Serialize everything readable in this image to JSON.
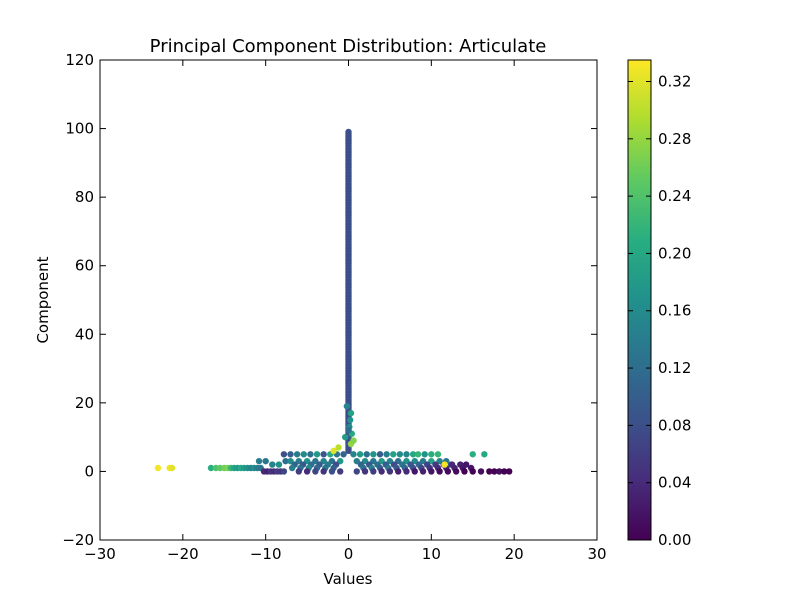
{
  "chart_data": {
    "type": "scatter",
    "title": "Principal Component Distribution: Articulate",
    "xlabel": "Values",
    "ylabel": "Component",
    "xlim": [
      -30,
      30
    ],
    "ylim": [
      -20,
      120
    ],
    "xticks": [
      -30,
      -20,
      -10,
      0,
      10,
      20,
      30
    ],
    "yticks": [
      -20,
      0,
      20,
      40,
      60,
      80,
      100,
      120
    ],
    "xtick_labels": [
      "−30",
      "−20",
      "−10",
      "0",
      "10",
      "20",
      "30"
    ],
    "ytick_labels": [
      "−20",
      "0",
      "20",
      "40",
      "60",
      "80",
      "100",
      "120"
    ],
    "grid": false,
    "colormap": "viridis",
    "colorbar": {
      "range": [
        0.0,
        0.335
      ],
      "ticks": [
        0.0,
        0.04,
        0.08,
        0.12,
        0.16,
        0.2,
        0.24,
        0.28,
        0.32
      ],
      "tick_labels": [
        "0.00",
        "0.04",
        "0.08",
        "0.12",
        "0.16",
        "0.20",
        "0.24",
        "0.28",
        "0.32"
      ]
    },
    "points": [
      [
        -23.0,
        1,
        0.33
      ],
      [
        -21.6,
        1,
        0.33
      ],
      [
        -21.3,
        1,
        0.32
      ],
      [
        -16.6,
        1,
        0.21
      ],
      [
        -16.0,
        1,
        0.24
      ],
      [
        -15.5,
        1,
        0.25
      ],
      [
        -15.0,
        1,
        0.26
      ],
      [
        -14.6,
        1,
        0.27
      ],
      [
        -14.2,
        1,
        0.22
      ],
      [
        -13.8,
        1,
        0.19
      ],
      [
        -13.4,
        1,
        0.18
      ],
      [
        -13.0,
        1,
        0.2
      ],
      [
        -12.6,
        1,
        0.18
      ],
      [
        -12.2,
        1,
        0.17
      ],
      [
        -11.8,
        1,
        0.15
      ],
      [
        -11.4,
        1,
        0.16
      ],
      [
        -11.0,
        1,
        0.14
      ],
      [
        -10.6,
        1,
        0.13
      ],
      [
        -10.2,
        0,
        0.04
      ],
      [
        -9.8,
        0,
        0.03
      ],
      [
        -9.4,
        0,
        0.05
      ],
      [
        -9.0,
        0,
        0.04
      ],
      [
        -8.6,
        0,
        0.06
      ],
      [
        -8.2,
        0,
        0.05
      ],
      [
        -7.8,
        0,
        0.07
      ],
      [
        -10.8,
        3,
        0.14
      ],
      [
        -10.0,
        3,
        0.13
      ],
      [
        -9.2,
        2,
        0.15
      ],
      [
        -8.4,
        2,
        0.17
      ],
      [
        -7.6,
        3,
        0.12
      ],
      [
        -7.8,
        5,
        0.08
      ],
      [
        -7.0,
        5,
        0.1
      ],
      [
        -6.2,
        5,
        0.14
      ],
      [
        -5.4,
        5,
        0.16
      ],
      [
        -4.6,
        5,
        0.12
      ],
      [
        -3.8,
        5,
        0.18
      ],
      [
        -3.0,
        5,
        0.09
      ],
      [
        -2.2,
        5,
        0.2
      ],
      [
        -1.4,
        5,
        0.13
      ],
      [
        -0.6,
        5,
        0.11
      ],
      [
        0.6,
        5,
        0.15
      ],
      [
        1.4,
        5,
        0.18
      ],
      [
        2.2,
        5,
        0.12
      ],
      [
        3.0,
        5,
        0.17
      ],
      [
        3.8,
        5,
        0.1
      ],
      [
        4.6,
        5,
        0.14
      ],
      [
        5.4,
        5,
        0.19
      ],
      [
        6.2,
        5,
        0.16
      ],
      [
        7.0,
        5,
        0.15
      ],
      [
        7.8,
        5,
        0.2
      ],
      [
        8.4,
        5,
        0.22
      ],
      [
        9.2,
        5,
        0.17
      ],
      [
        10.0,
        5,
        0.21
      ],
      [
        10.8,
        5,
        0.22
      ],
      [
        15.0,
        5,
        0.21
      ],
      [
        16.4,
        5,
        0.2
      ],
      [
        -7.0,
        3,
        0.16
      ],
      [
        -6.0,
        3,
        0.14
      ],
      [
        -5.0,
        3,
        0.17
      ],
      [
        -4.0,
        3,
        0.13
      ],
      [
        -3.0,
        3,
        0.15
      ],
      [
        -2.0,
        3,
        0.12
      ],
      [
        -1.0,
        3,
        0.18
      ],
      [
        1.0,
        3,
        0.14
      ],
      [
        2.0,
        3,
        0.16
      ],
      [
        3.0,
        3,
        0.13
      ],
      [
        4.0,
        3,
        0.18
      ],
      [
        5.0,
        3,
        0.15
      ],
      [
        6.0,
        3,
        0.12
      ],
      [
        7.0,
        3,
        0.17
      ],
      [
        8.0,
        3,
        0.16
      ],
      [
        9.0,
        3,
        0.14
      ],
      [
        10.0,
        3,
        0.19
      ],
      [
        11.0,
        3,
        0.15
      ],
      [
        11.8,
        3,
        0.13
      ],
      [
        12.4,
        2,
        0.1
      ],
      [
        -6.5,
        2,
        0.11
      ],
      [
        -5.5,
        2,
        0.09
      ],
      [
        -4.5,
        2,
        0.12
      ],
      [
        -3.5,
        2,
        0.1
      ],
      [
        -2.5,
        2,
        0.14
      ],
      [
        -1.5,
        2,
        0.08
      ],
      [
        1.5,
        2,
        0.11
      ],
      [
        2.5,
        2,
        0.09
      ],
      [
        3.5,
        2,
        0.12
      ],
      [
        4.5,
        2,
        0.1
      ],
      [
        5.5,
        2,
        0.08
      ],
      [
        6.5,
        2,
        0.13
      ],
      [
        7.5,
        2,
        0.09
      ],
      [
        8.5,
        2,
        0.11
      ],
      [
        9.5,
        2,
        0.07
      ],
      [
        10.5,
        2,
        0.06
      ],
      [
        11.5,
        2,
        0.05
      ],
      [
        12.5,
        2,
        0.04
      ],
      [
        13.5,
        2,
        0.03
      ],
      [
        14.2,
        2,
        0.02
      ],
      [
        -6.8,
        1,
        0.14
      ],
      [
        -5.8,
        1,
        0.12
      ],
      [
        -4.8,
        1,
        0.15
      ],
      [
        -3.8,
        1,
        0.11
      ],
      [
        -2.8,
        1,
        0.13
      ],
      [
        -1.8,
        1,
        0.1
      ],
      [
        1.8,
        1,
        0.12
      ],
      [
        2.8,
        1,
        0.14
      ],
      [
        3.8,
        1,
        0.1
      ],
      [
        4.8,
        1,
        0.13
      ],
      [
        5.8,
        1,
        0.09
      ],
      [
        6.8,
        1,
        0.11
      ],
      [
        7.8,
        1,
        0.08
      ],
      [
        8.8,
        1,
        0.07
      ],
      [
        9.8,
        1,
        0.05
      ],
      [
        10.8,
        1,
        0.04
      ],
      [
        11.8,
        1,
        0.03
      ],
      [
        12.8,
        1,
        0.03
      ],
      [
        13.8,
        1,
        0.02
      ],
      [
        14.8,
        1,
        0.02
      ],
      [
        -6.0,
        0,
        0.06
      ],
      [
        -5.0,
        0,
        0.04
      ],
      [
        -4.0,
        0,
        0.07
      ],
      [
        -3.0,
        0,
        0.05
      ],
      [
        -2.0,
        0,
        0.08
      ],
      [
        -1.0,
        0,
        0.06
      ],
      [
        1.0,
        0,
        0.07
      ],
      [
        2.0,
        0,
        0.05
      ],
      [
        3.0,
        0,
        0.06
      ],
      [
        4.0,
        0,
        0.04
      ],
      [
        5.0,
        0,
        0.05
      ],
      [
        6.0,
        0,
        0.03
      ],
      [
        7.0,
        0,
        0.04
      ],
      [
        8.0,
        0,
        0.02
      ],
      [
        9.0,
        0,
        0.03
      ],
      [
        10.0,
        0,
        0.02
      ],
      [
        11.0,
        0,
        0.01
      ],
      [
        12.0,
        0,
        0.01
      ],
      [
        13.0,
        0,
        0.01
      ],
      [
        14.0,
        0,
        0.0
      ],
      [
        15.0,
        0,
        0.0
      ],
      [
        16.0,
        0,
        0.01
      ],
      [
        17.0,
        0,
        0.0
      ],
      [
        17.6,
        0,
        0.0
      ],
      [
        18.2,
        0,
        0.01
      ],
      [
        18.8,
        0,
        0.0
      ],
      [
        19.4,
        0,
        0.0
      ],
      [
        -1.8,
        6,
        0.32
      ],
      [
        -1.2,
        7,
        0.3
      ],
      [
        0.3,
        8,
        0.28
      ],
      [
        0.6,
        9,
        0.27
      ],
      [
        -0.4,
        10,
        0.18
      ],
      [
        0.4,
        11,
        0.2
      ],
      [
        0.1,
        13,
        0.16
      ],
      [
        0.2,
        15,
        0.17
      ],
      [
        0.3,
        17,
        0.19
      ],
      [
        -0.2,
        19,
        0.15
      ],
      [
        11.6,
        2,
        0.33
      ],
      [
        0.0,
        12,
        0.12
      ]
    ],
    "spike": {
      "x": 0.0,
      "y_from": 6,
      "y_to": 99,
      "step": 0.5,
      "value": 0.08
    }
  }
}
